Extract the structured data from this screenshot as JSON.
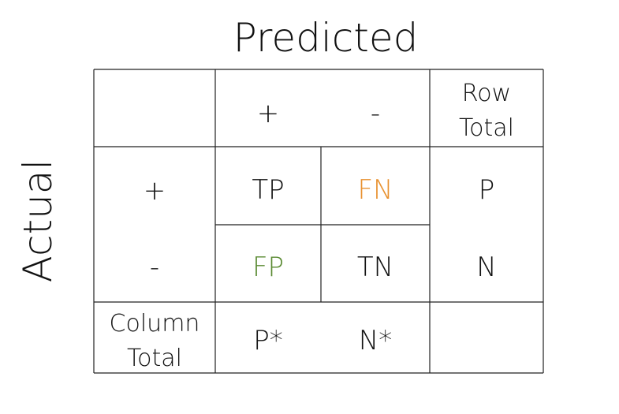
{
  "axes": {
    "predicted_label": "Predicted",
    "actual_label": "Actual"
  },
  "header": {
    "pred_positive": "+",
    "pred_negative": "-",
    "row_total_line1": "Row",
    "row_total_line2": "Total"
  },
  "rows": {
    "actual_positive": "+",
    "actual_negative": "-"
  },
  "cells": {
    "tp": "TP",
    "fn": "FN",
    "fp": "FP",
    "tn": "TN"
  },
  "row_totals": {
    "p": "P",
    "n": "N"
  },
  "footer": {
    "column_total_line1": "Column",
    "column_total_line2": "Total",
    "p_star": "P*",
    "n_star": "N*"
  },
  "colors": {
    "fn": "#e8912f",
    "fp": "#5a8a32",
    "text": "#111111",
    "lines": "#222222"
  }
}
